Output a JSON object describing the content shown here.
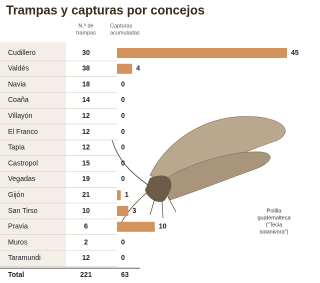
{
  "chart_data": {
    "type": "bar",
    "title": "Trampas y capturas por concejos",
    "trap_header": [
      "N.º de",
      "trampas"
    ],
    "capture_header": [
      "Capturas",
      "acumuladas"
    ],
    "categories": [
      "Cudillero",
      "Valdés",
      "Navia",
      "Coaña",
      "Villayón",
      "El Franco",
      "Tapia",
      "Castropol",
      "Vegadas",
      "Gijón",
      "San Tirso",
      "Pravia",
      "Muros",
      "Taramundi"
    ],
    "traps": [
      30,
      38,
      18,
      14,
      12,
      12,
      12,
      15,
      19,
      21,
      10,
      6,
      2,
      12
    ],
    "values": [
      45,
      4,
      0,
      0,
      0,
      0,
      0,
      0,
      0,
      1,
      3,
      10,
      0,
      0
    ],
    "color": "#d4935a",
    "total_label": "Total",
    "total_traps": 221,
    "total_values": 63,
    "caption": [
      "Polilla",
      "guatemalteca",
      "(\"Tecia",
      "solanivora\")"
    ]
  }
}
